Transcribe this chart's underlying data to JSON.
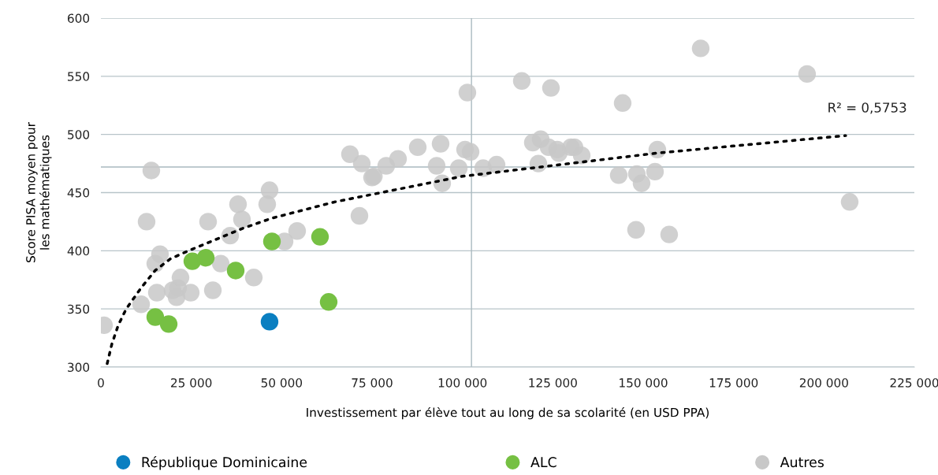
{
  "chart_data": {
    "type": "scatter",
    "xlabel": "Investissement par élève tout au long de sa scolarité (en USD PPA)",
    "ylabel": "Score PISA moyen pour\nles mathématiques",
    "annotations": [
      "R² = 0,5753"
    ],
    "xlim": [
      0,
      225000
    ],
    "ylim": [
      300,
      600
    ],
    "xticks": [
      0,
      {
        "value": 25000,
        "label": "25 000"
      },
      {
        "value": 50000,
        "label": "50 000"
      },
      {
        "value": 75000,
        "label": "75 000"
      },
      {
        "value": 100000,
        "label": "100 000"
      },
      {
        "value": 125000,
        "label": "125 000"
      },
      {
        "value": 150000,
        "label": "150 000"
      },
      {
        "value": 175000,
        "label": "175 000"
      },
      {
        "value": 200000,
        "label": "200 000"
      },
      {
        "value": 225000,
        "label": "225 000"
      }
    ],
    "yticks": [
      300,
      350,
      400,
      450,
      500,
      550,
      600
    ],
    "grid": "y",
    "legend": "bottom",
    "marker": "circle",
    "ref_lines": [
      {
        "axis": "x",
        "value": 102500,
        "color": "#a9b9bf"
      },
      {
        "axis": "y",
        "value": 472,
        "color": "#a9b9bf"
      }
    ],
    "series": [
      {
        "name": "Autres",
        "color": "#c8c8c8",
        "x": [
          13950,
          12640,
          16350,
          15040,
          11120,
          870,
          15480,
          19840,
          21360,
          20930,
          22020,
          24850,
          30960,
          29650,
          33140,
          37930,
          39020,
          35750,
          46000,
          46650,
          50800,
          54280,
          42290,
          68890,
          72160,
          75000,
          75500,
          78920,
          82190,
          87640,
          93960,
          92870,
          94400,
          98980,
          100720,
          102250,
          101370,
          105730,
          109440,
          116420,
          124480,
          119470,
          121650,
          121000,
          123830,
          126230,
          126660,
          130000,
          131000,
          132990,
          71510,
          165900,
          195330,
          144320,
          153910,
          143230,
          148240,
          149550,
          153260,
          207110,
          148020,
          157180
        ],
        "values": [
          469,
          425,
          397,
          389,
          354,
          336,
          364,
          366,
          368,
          360,
          377,
          364,
          366,
          425,
          389,
          440,
          427,
          413,
          440,
          452,
          408,
          417,
          377,
          483,
          475,
          463,
          464,
          473,
          479,
          489,
          492,
          473,
          458,
          471,
          487,
          485,
          536,
          471,
          474,
          546,
          540,
          493,
          496,
          475,
          489,
          487,
          484,
          489,
          489,
          482,
          430,
          574,
          552,
          527,
          487,
          465,
          466,
          458,
          468,
          442,
          418,
          414
        ]
      },
      {
        "name": "ALC",
        "color": "#76c043",
        "x": [
          15040,
          18750,
          25290,
          29000,
          37280,
          47310,
          60610,
          63000
        ],
        "values": [
          343,
          337,
          391,
          394,
          383,
          408,
          412,
          356
        ]
      },
      {
        "name": "République Dominicaine",
        "color": "#0a7fc1",
        "x": [
          46650
        ],
        "values": [
          339
        ]
      },
      {
        "type": "line",
        "color": "#000000",
        "line_style": "dotted",
        "marker": "none",
        "x": [
          1740,
          3050,
          4800,
          7000,
          11100,
          15000,
          19200,
          24200,
          30500,
          39000,
          47300,
          64700,
          100000,
          153900,
          206000
        ],
        "values": [
          303,
          320,
          336,
          350,
          368,
          383,
          393,
          400,
          408,
          419,
          428,
          442,
          464,
          484,
          499
        ]
      }
    ]
  }
}
